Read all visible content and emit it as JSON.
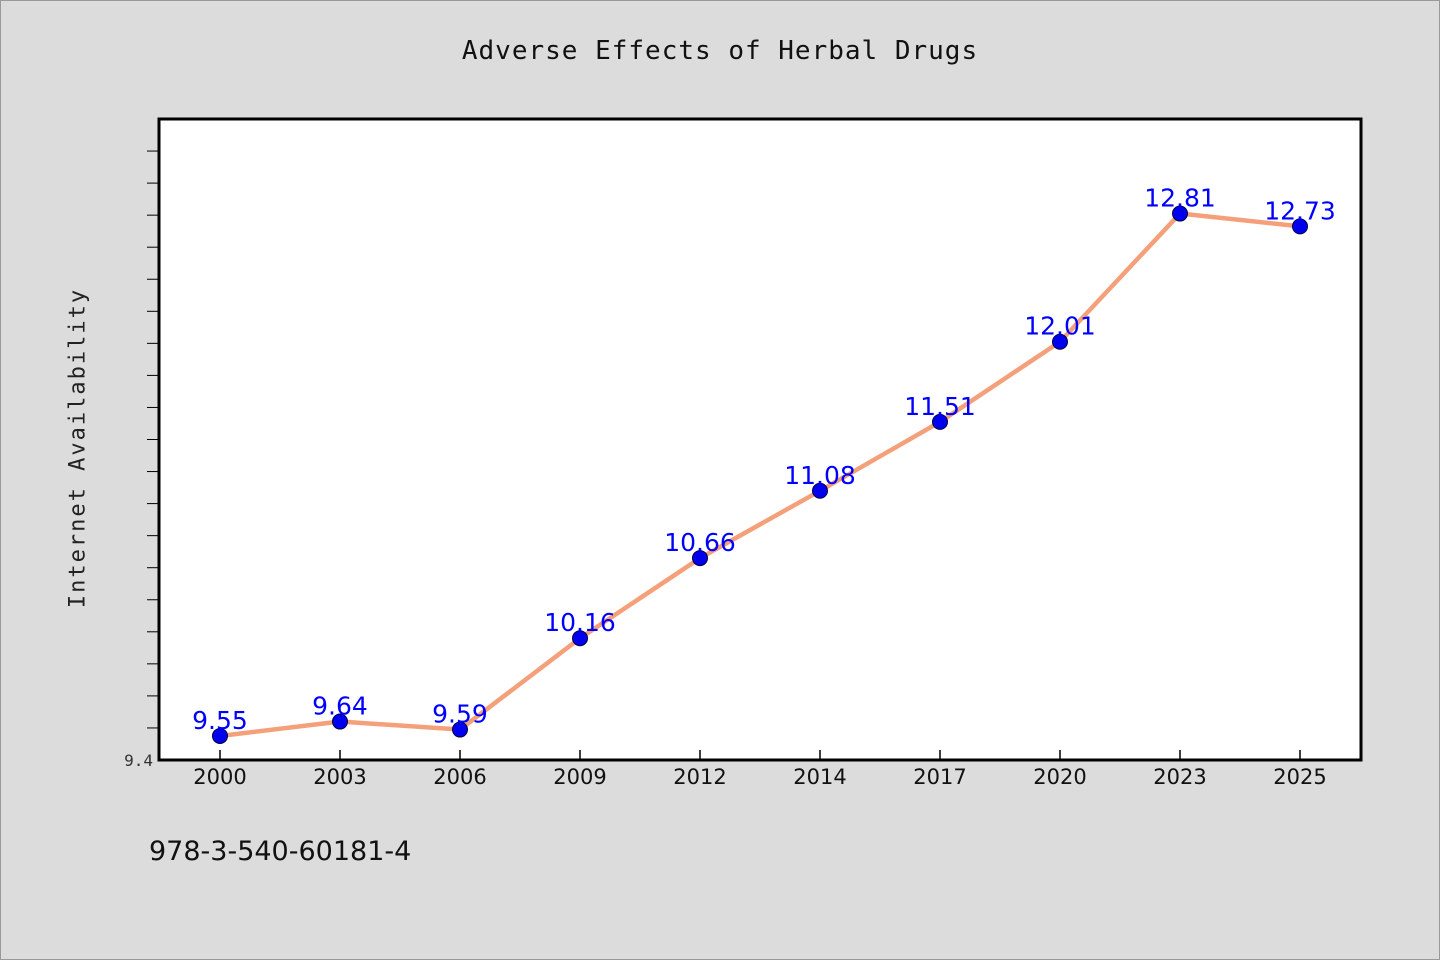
{
  "page": {
    "background": "#dcdcdc"
  },
  "chart_data": {
    "type": "line",
    "title": "Adverse Effects of Herbal Drugs",
    "xlabel": "",
    "ylabel": "Internet Availability",
    "categories": [
      "2000",
      "2003",
      "2006",
      "2009",
      "2012",
      "2014",
      "2017",
      "2020",
      "2023",
      "2025"
    ],
    "values": [
      9.55,
      9.64,
      9.59,
      10.16,
      10.66,
      11.08,
      11.51,
      12.01,
      12.81,
      12.73
    ],
    "data_labels": [
      "9.55",
      "9.64",
      "9.59",
      "10.16",
      "10.66",
      "11.08",
      "11.51",
      "12.01",
      "12.81",
      "12.73"
    ],
    "ylim": [
      9.4,
      13.4
    ],
    "y_tick_labels": [
      "9.4"
    ],
    "grid": false,
    "legend": "none",
    "colors": {
      "line": "#f4a07a",
      "marker": "#0000ee",
      "label": "#0000ff",
      "plot_background": "#ffffff"
    }
  },
  "footer": {
    "isbn": "978-3-540-60181-4"
  }
}
